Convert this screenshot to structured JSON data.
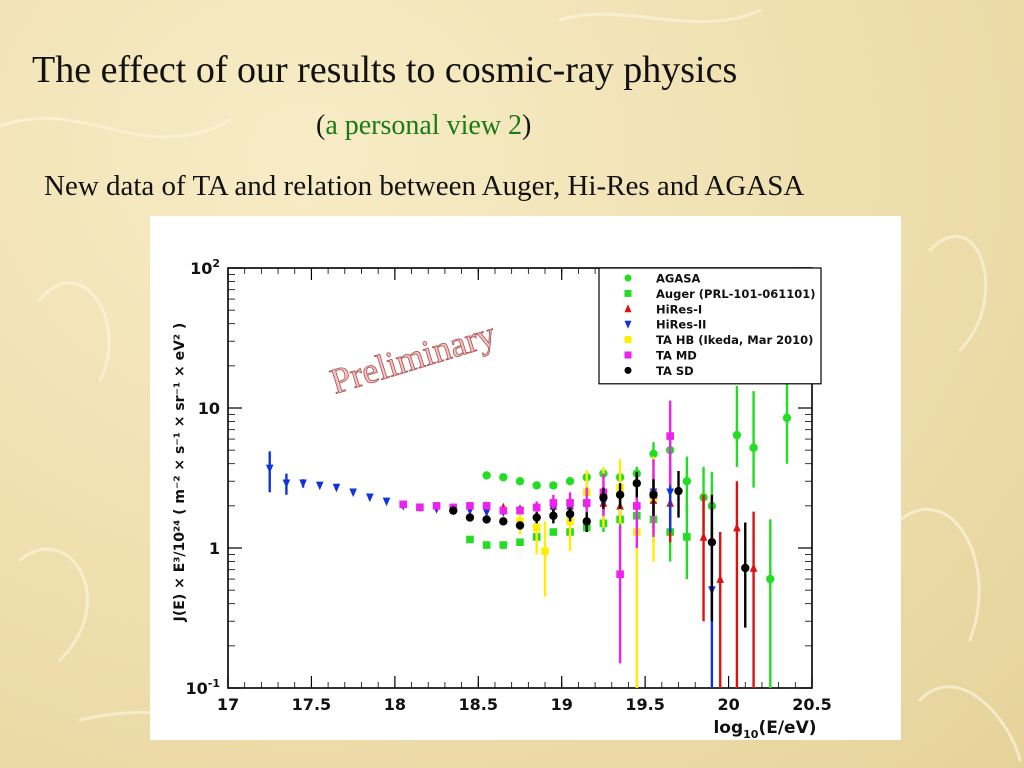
{
  "slide": {
    "title": "The effect of our results to cosmic-ray physics",
    "subtitle_open": "(",
    "subtitle_text": "a personal view 2",
    "subtitle_close": ")",
    "caption": "New data of TA and relation between Auger, Hi-Res and AGASA"
  },
  "colors": {
    "background": "#efdfae",
    "subtitle_accent": "#1a7a1a",
    "watermark": "#f4c2c2"
  },
  "chart_data": {
    "type": "scatter",
    "xlabel_main": "log",
    "xlabel_sub": "10",
    "xlabel_rest": "(E/eV)",
    "ylabel": "J(E) × E³/10²⁴  ( m⁻² × s⁻¹ × sr⁻¹ × eV² )",
    "xlim": [
      17,
      20.5
    ],
    "ylim": [
      0.1,
      100
    ],
    "yscale": "log",
    "x_ticks": [
      "17",
      "17.5",
      "18",
      "18.5",
      "19",
      "19.5",
      "20",
      "20.5"
    ],
    "y_ticks": [
      {
        "value": 100,
        "base": "10",
        "exp": "2"
      },
      {
        "value": 10,
        "base": "10",
        "exp": ""
      },
      {
        "value": 1,
        "base": "1",
        "exp": ""
      },
      {
        "value": 0.1,
        "base": "10",
        "exp": "-1"
      }
    ],
    "watermark": "Preliminary",
    "legend_position": "top-right",
    "series": [
      {
        "name": "AGASA",
        "marker": "circle",
        "color": "#22dd22",
        "points": [
          [
            18.55,
            3.3,
            null,
            null
          ],
          [
            18.65,
            3.2,
            null,
            null
          ],
          [
            18.75,
            3.0,
            null,
            null
          ],
          [
            18.85,
            2.8,
            null,
            null
          ],
          [
            18.95,
            2.8,
            null,
            null
          ],
          [
            19.05,
            3.0,
            null,
            null
          ],
          [
            19.15,
            3.2,
            null,
            null
          ],
          [
            19.25,
            3.4,
            null,
            null
          ],
          [
            19.35,
            3.2,
            0.3,
            0.3
          ],
          [
            19.45,
            3.4,
            0.4,
            0.4
          ],
          [
            19.55,
            4.7,
            0.8,
            1.0
          ],
          [
            19.65,
            5.0,
            1.2,
            1.5
          ],
          [
            19.75,
            3.0,
            1.2,
            1.5
          ],
          [
            19.85,
            2.3,
            1.0,
            1.5
          ],
          [
            19.9,
            2.0,
            1.0,
            1.5
          ],
          [
            20.05,
            6.4,
            2.6,
            8.0
          ],
          [
            20.15,
            5.2,
            2.5,
            8.0
          ],
          [
            20.25,
            0.6,
            0.5,
            1.0
          ],
          [
            20.35,
            8.5,
            4.5,
            9.0
          ]
        ]
      },
      {
        "name": "Auger (PRL-101-061101)",
        "marker": "square",
        "color": "#22dd22",
        "points": [
          [
            18.45,
            1.15,
            null,
            null
          ],
          [
            18.55,
            1.05,
            null,
            null
          ],
          [
            18.65,
            1.05,
            null,
            null
          ],
          [
            18.75,
            1.1,
            null,
            null
          ],
          [
            18.85,
            1.2,
            null,
            null
          ],
          [
            18.95,
            1.3,
            null,
            null
          ],
          [
            19.05,
            1.3,
            null,
            null
          ],
          [
            19.15,
            1.4,
            null,
            null
          ],
          [
            19.25,
            1.5,
            0.2,
            0.2
          ],
          [
            19.35,
            1.6,
            0.3,
            0.3
          ],
          [
            19.45,
            1.7,
            0.4,
            0.4
          ],
          [
            19.55,
            1.6,
            0.5,
            0.6
          ],
          [
            19.65,
            1.3,
            0.5,
            0.7
          ],
          [
            19.75,
            1.2,
            0.6,
            0.8
          ]
        ]
      },
      {
        "name": "HiRes-I",
        "marker": "triangle-up",
        "color": "#dd1111",
        "points": [
          [
            18.55,
            2.0,
            null,
            null
          ],
          [
            18.65,
            1.95,
            null,
            null
          ],
          [
            18.75,
            1.9,
            null,
            null
          ],
          [
            18.85,
            1.95,
            null,
            null
          ],
          [
            18.95,
            2.0,
            null,
            null
          ],
          [
            19.05,
            2.0,
            null,
            null
          ],
          [
            19.15,
            2.1,
            0.2,
            0.2
          ],
          [
            19.25,
            2.1,
            0.3,
            0.3
          ],
          [
            19.35,
            2.0,
            0.4,
            0.4
          ],
          [
            19.45,
            2.0,
            0.5,
            0.5
          ],
          [
            19.55,
            2.2,
            0.8,
            0.8
          ],
          [
            19.65,
            2.1,
            1.0,
            1.1
          ],
          [
            19.85,
            1.2,
            0.9,
            1.2
          ],
          [
            19.95,
            0.6,
            0.5,
            0.7
          ],
          [
            20.05,
            1.4,
            1.3,
            1.6
          ],
          [
            20.15,
            0.72,
            0.64,
            1.1
          ]
        ]
      },
      {
        "name": "HiRes-II",
        "marker": "triangle-down",
        "color": "#1133dd",
        "points": [
          [
            17.25,
            3.7,
            1.2,
            1.2
          ],
          [
            17.35,
            2.9,
            0.5,
            0.5
          ],
          [
            17.45,
            2.9,
            0.2,
            0.2
          ],
          [
            17.55,
            2.8,
            0.1,
            0.1
          ],
          [
            17.65,
            2.7,
            0.1,
            0.1
          ],
          [
            17.75,
            2.5,
            0.1,
            0.1
          ],
          [
            17.85,
            2.3,
            0.1,
            0.1
          ],
          [
            17.95,
            2.15,
            null,
            null
          ],
          [
            18.05,
            2.0,
            null,
            null
          ],
          [
            18.15,
            1.95,
            null,
            null
          ],
          [
            18.25,
            1.9,
            null,
            null
          ],
          [
            18.35,
            1.85,
            null,
            null
          ],
          [
            18.45,
            1.85,
            null,
            null
          ],
          [
            18.55,
            1.8,
            null,
            null
          ],
          [
            18.65,
            1.8,
            null,
            null
          ],
          [
            18.75,
            1.85,
            null,
            null
          ],
          [
            18.85,
            1.9,
            null,
            null
          ],
          [
            18.95,
            1.9,
            0.2,
            0.2
          ],
          [
            19.05,
            1.9,
            0.3,
            0.3
          ],
          [
            19.15,
            2.0,
            0.4,
            0.4
          ],
          [
            19.25,
            2.1,
            0.5,
            0.5
          ],
          [
            19.35,
            2.3,
            0.6,
            0.6
          ],
          [
            19.55,
            2.5,
            0.8,
            0.9
          ],
          [
            19.65,
            2.5,
            1.2,
            1.3
          ],
          [
            19.9,
            0.5,
            0.45,
            1.0
          ]
        ]
      },
      {
        "name": "TA HB (Ikeda, Mar 2010)",
        "marker": "square",
        "color": "#ffee00",
        "points": [
          [
            18.75,
            1.55,
            0.3,
            0.3
          ],
          [
            18.85,
            1.4,
            0.5,
            0.5
          ],
          [
            18.9,
            0.95,
            0.5,
            0.6
          ],
          [
            19.05,
            1.55,
            0.6,
            0.8
          ],
          [
            19.15,
            2.5,
            0.9,
            1.1
          ],
          [
            19.25,
            2.5,
            1.1,
            1.3
          ],
          [
            19.35,
            2.7,
            1.2,
            1.6
          ],
          [
            19.45,
            1.3,
            1.2,
            2.0
          ],
          [
            19.55,
            2.3,
            1.5,
            2.2
          ]
        ]
      },
      {
        "name": "TA MD",
        "marker": "square",
        "color": "#ee22ee",
        "points": [
          [
            18.05,
            2.05,
            null,
            null
          ],
          [
            18.15,
            1.95,
            null,
            null
          ],
          [
            18.25,
            2.0,
            null,
            null
          ],
          [
            18.35,
            1.95,
            null,
            null
          ],
          [
            18.45,
            2.0,
            null,
            null
          ],
          [
            18.55,
            2.0,
            null,
            null
          ],
          [
            18.65,
            1.85,
            null,
            null
          ],
          [
            18.75,
            1.85,
            null,
            null
          ],
          [
            18.85,
            1.95,
            0.2,
            0.2
          ],
          [
            18.95,
            2.1,
            0.3,
            0.3
          ],
          [
            19.05,
            2.1,
            0.4,
            0.4
          ],
          [
            19.15,
            2.1,
            0.5,
            0.6
          ],
          [
            19.25,
            2.5,
            0.8,
            0.9
          ],
          [
            19.35,
            0.65,
            0.5,
            0.8
          ],
          [
            19.45,
            2.0,
            1.0,
            1.5
          ],
          [
            19.55,
            2.4,
            1.2,
            1.9
          ],
          [
            19.65,
            6.3,
            3.5,
            5.0
          ]
        ]
      },
      {
        "name": "TA SD",
        "marker": "circle",
        "color": "#000000",
        "points": [
          [
            18.35,
            1.85,
            0.1,
            0.1
          ],
          [
            18.45,
            1.65,
            0.1,
            0.1
          ],
          [
            18.55,
            1.6,
            0.1,
            0.1
          ],
          [
            18.65,
            1.55,
            0.1,
            0.1
          ],
          [
            18.75,
            1.45,
            0.1,
            0.1
          ],
          [
            18.85,
            1.65,
            0.15,
            0.15
          ],
          [
            18.95,
            1.7,
            0.2,
            0.2
          ],
          [
            19.05,
            1.75,
            0.2,
            0.2
          ],
          [
            19.15,
            1.55,
            0.25,
            0.25
          ],
          [
            19.25,
            2.3,
            0.4,
            0.4
          ],
          [
            19.35,
            2.4,
            0.5,
            0.5
          ],
          [
            19.45,
            2.9,
            0.6,
            0.6
          ],
          [
            19.55,
            2.4,
            0.7,
            0.7
          ],
          [
            19.7,
            2.55,
            0.9,
            1.0
          ],
          [
            19.9,
            1.1,
            0.8,
            1.3
          ],
          [
            20.1,
            0.72,
            0.45,
            0.8
          ]
        ]
      }
    ]
  }
}
